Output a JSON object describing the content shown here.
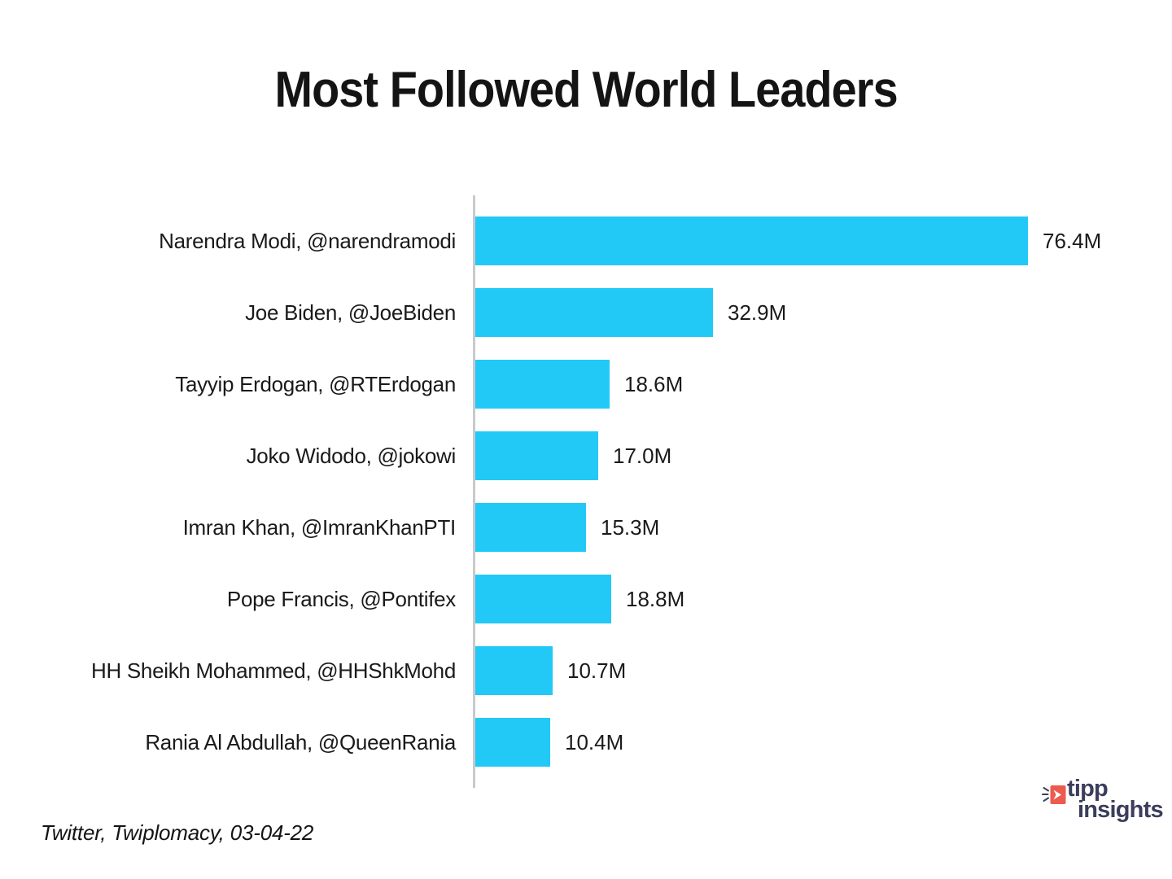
{
  "chart_data": {
    "type": "bar",
    "orientation": "horizontal",
    "title": "Most Followed World Leaders",
    "categories": [
      "Narendra Modi, @narendramodi",
      "Joe Biden, @JoeBiden",
      "Tayyip Erdogan, @RTErdogan",
      "Joko Widodo, @jokowi",
      "Imran Khan, @ImranKhanPTI",
      "Pope Francis, @Pontifex",
      "HH Sheikh Mohammed, @HHShkMohd",
      "Rania Al Abdullah, @QueenRania"
    ],
    "values": [
      76.4,
      32.9,
      18.6,
      17.0,
      15.3,
      18.8,
      10.7,
      10.4
    ],
    "value_labels": [
      "76.4M",
      "32.9M",
      "18.6M",
      "17.0M",
      "15.3M",
      "18.8M",
      "10.7M",
      "10.4M"
    ],
    "unit": "M followers",
    "xlim": [
      0,
      76.4
    ],
    "grid": false,
    "legend": "none",
    "bar_color": "#22C9F7",
    "axis_line_color": "#C8C9CD",
    "text_color": "#1A1A1A"
  },
  "footer": {
    "source": "Twitter, Twiplomacy, 03-04-22",
    "logo": {
      "line1": "tipp",
      "line2": "insights",
      "navy_color": "#3B3E5A",
      "red_color": "#EC5B4E"
    }
  }
}
